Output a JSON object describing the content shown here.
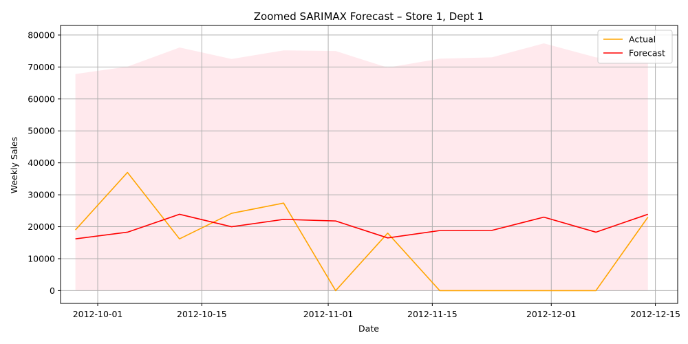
{
  "chart_data": {
    "type": "line",
    "title": "Zoomed SARIMAX Forecast – Store 1, Dept 1",
    "xlabel": "Date",
    "ylabel": "Weekly Sales",
    "x": [
      "2012-09-28",
      "2012-10-05",
      "2012-10-12",
      "2012-10-19",
      "2012-10-26",
      "2012-11-02",
      "2012-11-09",
      "2012-11-16",
      "2012-11-23",
      "2012-11-30",
      "2012-12-07",
      "2012-12-14"
    ],
    "x_ticks": [
      "2012-10-01",
      "2012-10-15",
      "2012-11-01",
      "2012-11-15",
      "2012-12-01",
      "2012-12-15"
    ],
    "xlim": [
      "2012-09-26",
      "2012-12-18"
    ],
    "y_ticks": [
      0,
      10000,
      20000,
      30000,
      40000,
      50000,
      60000,
      70000,
      80000
    ],
    "ylim": [
      -4000,
      83000
    ],
    "grid": true,
    "legend_position": "top-right",
    "series": [
      {
        "name": "Actual",
        "color": "#ffa500",
        "values": [
          19000,
          37000,
          16200,
          24200,
          27400,
          0,
          18000,
          0,
          0,
          0,
          0,
          23000
        ]
      },
      {
        "name": "Forecast",
        "color": "#ff0000",
        "values": [
          16200,
          18300,
          23900,
          20000,
          22300,
          21800,
          16500,
          18800,
          18850,
          23000,
          18300,
          23900
        ]
      }
    ],
    "confidence_band": {
      "color": "#ffc0cb",
      "lower": [
        0,
        0,
        0,
        0,
        0,
        0,
        0,
        0,
        0,
        0,
        0,
        0
      ],
      "upper": [
        67800,
        70100,
        76100,
        72500,
        75200,
        75000,
        69800,
        72600,
        73000,
        77400,
        73000,
        71500
      ]
    }
  }
}
